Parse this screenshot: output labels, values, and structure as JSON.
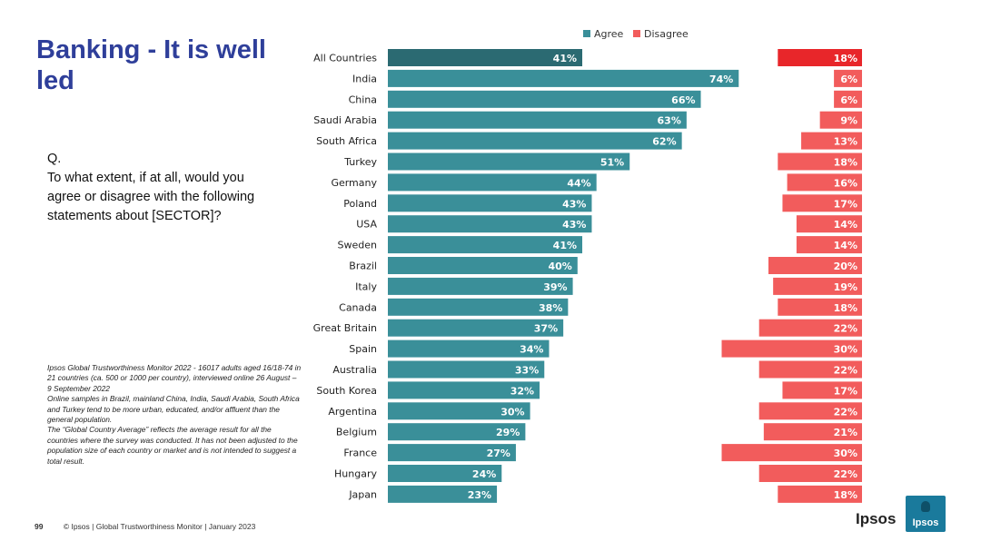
{
  "slide": {
    "title": "Banking - It is well led",
    "question_label": "Q.",
    "question": "To what extent, if at all, would you agree or disagree with the following statements about [SECTOR]?",
    "notes": [
      "Ipsos Global Trustworthiness Monitor 2022 - 16017 adults aged 16/18-74 in 21 countries (ca. 500 or 1000 per country), interviewed online 26 August – 9 September 2022",
      "Online samples in Brazil, mainland China, India, Saudi Arabia, South Africa and Turkey tend to be more urban, educated, and/or affluent than the general population.",
      "The “Global Country Average” reflects the average result for all the countries where the survey was conducted. It has not been adjusted to the population size of each country or market and is not intended to suggest a total result."
    ],
    "page_number": "99",
    "footer": "© Ipsos | Global Trustworthiness Monitor | January 2023",
    "logo_text": "Ipsos",
    "logo_badge_text": "Ipsos"
  },
  "colors": {
    "agree": "#3a8f99",
    "agree_highlight": "#2b6a72",
    "disagree": "#f25c5c",
    "disagree_highlight": "#e8262a",
    "title": "#2f3f9a"
  },
  "chart_data": {
    "type": "bar",
    "orientation": "horizontal",
    "legend_position": "top",
    "categories": [
      "All Countries",
      "India",
      "China",
      "Saudi Arabia",
      "South Africa",
      "Turkey",
      "Germany",
      "Poland",
      "USA",
      "Sweden",
      "Brazil",
      "Italy",
      "Canada",
      "Great Britain",
      "Spain",
      "Australia",
      "South Korea",
      "Argentina",
      "Belgium",
      "France",
      "Hungary",
      "Japan"
    ],
    "series": [
      {
        "name": "Agree",
        "values": [
          41,
          74,
          66,
          63,
          62,
          51,
          44,
          43,
          43,
          41,
          40,
          39,
          38,
          37,
          34,
          33,
          32,
          30,
          29,
          27,
          24,
          23
        ]
      },
      {
        "name": "Disagree",
        "values": [
          18,
          6,
          6,
          9,
          13,
          18,
          16,
          17,
          14,
          14,
          20,
          19,
          18,
          22,
          30,
          22,
          17,
          22,
          21,
          30,
          22,
          18
        ]
      }
    ],
    "value_suffix": "%"
  }
}
